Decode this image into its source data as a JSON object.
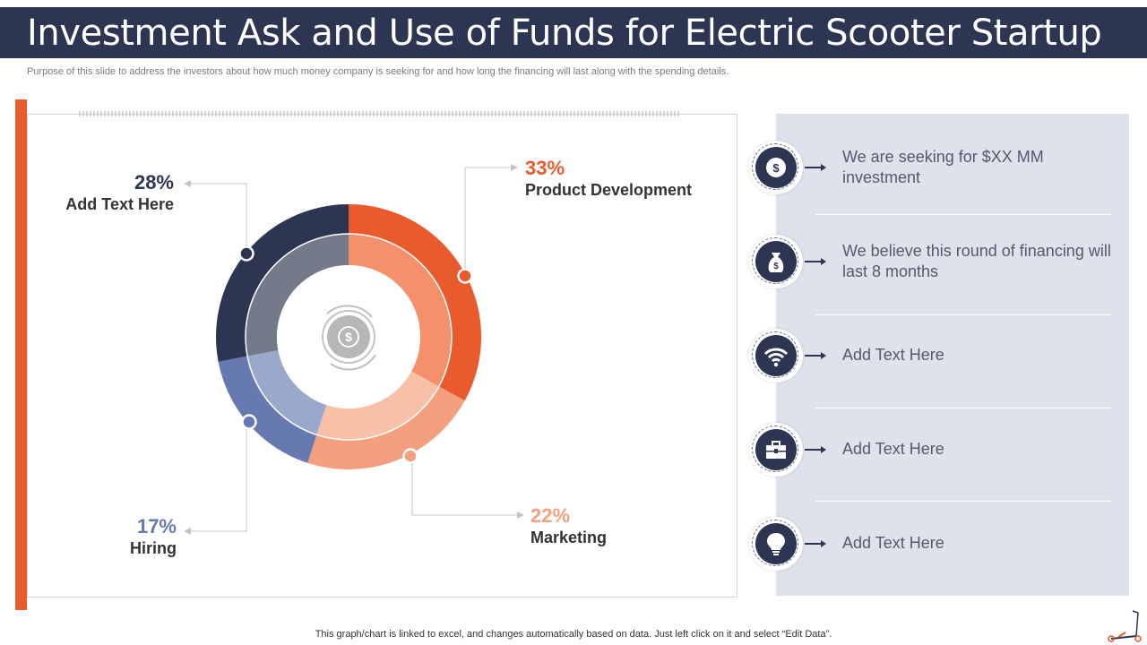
{
  "title": "Investment Ask and Use of Funds for Electric Scooter Startup",
  "subtitle": "Purpose of this slide to address the investors about how much money company is seeking for and how long the financing will last along with the spending details.",
  "colors": {
    "header_bg": "#2c3551",
    "accent_orange": "#e95a2c",
    "panel_bg": "#dfe2ed"
  },
  "chart_data": {
    "type": "pie",
    "style": "double-ring donut",
    "center_icon": "dollar-cycle-icon",
    "slices": [
      {
        "label": "Product Development",
        "value_label": "33%",
        "value": 33,
        "color": "#e95a2c",
        "inner_color": "#f4916c"
      },
      {
        "label": "Marketing",
        "value_label": "22%",
        "value": 22,
        "color": "#f4a07e",
        "inner_color": "#f8c0a6"
      },
      {
        "label": "Hiring",
        "value_label": "17%",
        "value": 17,
        "color": "#6679b0",
        "inner_color": "#9aa8cc"
      },
      {
        "label": "Add Text Here",
        "value_label": "28%",
        "value": 28,
        "color": "#2c3551",
        "inner_color": "#747a8a"
      }
    ]
  },
  "panel_items": [
    {
      "icon": "dollar-icon",
      "text": "We are seeking for $XX MM investment"
    },
    {
      "icon": "money-bag-icon",
      "text": "We believe this round of financing will last 8 months"
    },
    {
      "icon": "wifi-icon",
      "text": "Add  Text Here"
    },
    {
      "icon": "briefcase-icon",
      "text": "Add  Text Here"
    },
    {
      "icon": "lightbulb-icon",
      "text": "Add  Text Here"
    }
  ],
  "footer": "This graph/chart is linked to excel,  and changes automatically based on data. Just left click on it and select “Edit Data”."
}
